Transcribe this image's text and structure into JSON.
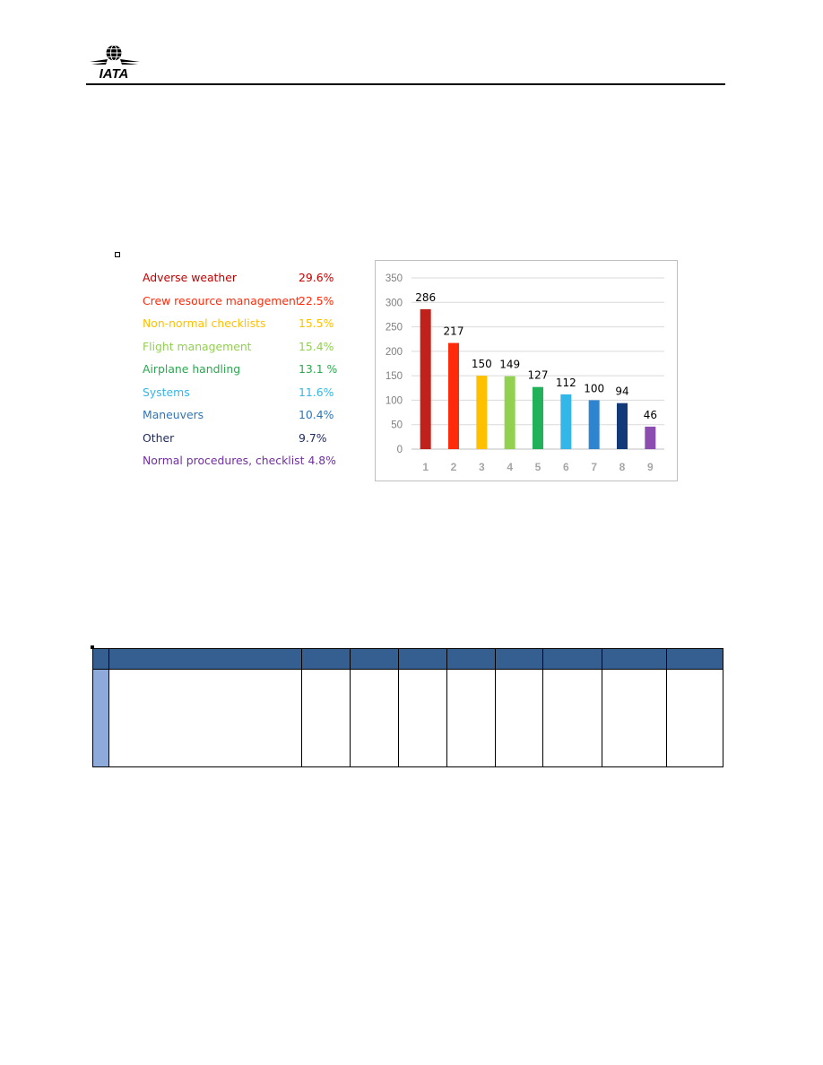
{
  "header": {
    "logo_text": "IATA",
    "logo_icon": "globe-wings-logo"
  },
  "legend": {
    "items": [
      {
        "label": "Adverse weather",
        "percent": "29.6%",
        "color": "#c00000"
      },
      {
        "label": "Crew resource management",
        "percent": "22.5%",
        "color": "#ff2a0a"
      },
      {
        "label": "Non-normal checklists",
        "percent": "15.5%",
        "color": "#ffc000"
      },
      {
        "label": "Flight management",
        "percent": "15.4%",
        "color": "#92d050"
      },
      {
        "label": "Airplane handling",
        "percent": "13.1 %",
        "color": "#2aa84f"
      },
      {
        "label": "Systems",
        "percent": "11.6%",
        "color": "#35b6e8"
      },
      {
        "label": "Maneuvers",
        "percent": "10.4%",
        "color": "#2e75b6"
      },
      {
        "label": "Other",
        "percent": "9.7%",
        "color": "#1f2a5c"
      },
      {
        "label": "Normal procedures, checklist",
        "percent": "4.8%",
        "color": "#7030a0"
      }
    ]
  },
  "chart_data": {
    "type": "bar",
    "categories": [
      "1",
      "2",
      "3",
      "4",
      "5",
      "6",
      "7",
      "8",
      "9"
    ],
    "values": [
      286,
      217,
      150,
      149,
      127,
      112,
      100,
      94,
      46
    ],
    "colors": [
      "#c0211a",
      "#ff2a0a",
      "#ffc000",
      "#92d050",
      "#22b15b",
      "#35b6e8",
      "#2e84cf",
      "#123a78",
      "#8b4db0"
    ],
    "ylim": [
      0,
      350
    ],
    "yticks": [
      "0",
      "50",
      "100",
      "150",
      "200",
      "250",
      "300",
      "350"
    ],
    "grid": true,
    "data_labels": true,
    "title": "",
    "xlabel": "",
    "ylabel": ""
  },
  "table": {
    "header_color": "#365f91",
    "first_column_color": "#8eaadb",
    "column_count": 10,
    "rows": [
      [
        "",
        "",
        "",
        "",
        "",
        "",
        "",
        "",
        "",
        ""
      ],
      [
        "",
        "",
        "",
        "",
        "",
        "",
        "",
        "",
        "",
        ""
      ]
    ]
  }
}
